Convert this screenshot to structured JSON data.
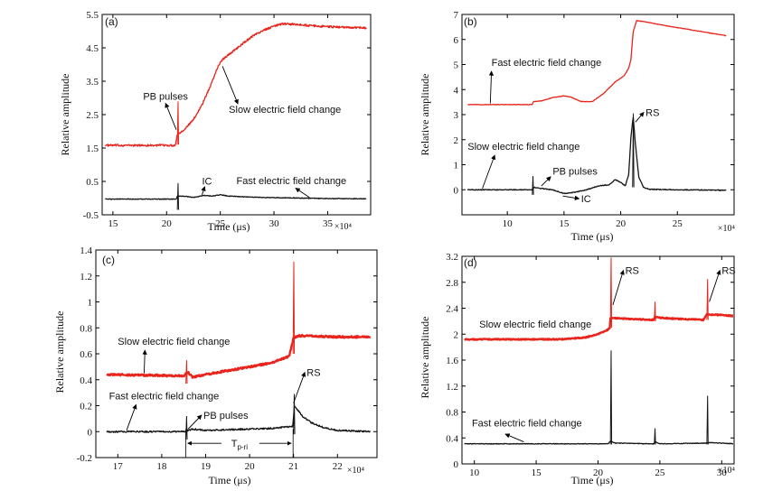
{
  "figure": {
    "colors": {
      "slow": "#e8241c",
      "fast": "#151515",
      "axis": "#000000"
    }
  },
  "chart_data": [
    {
      "id": "a",
      "panel_label": "(a)",
      "type": "line",
      "xlabel": "Time (μs)",
      "ylabel": "Relative amplitude",
      "x_multiplier": "×10⁴",
      "xlim": [
        14,
        39
      ],
      "ylim": [
        -0.5,
        5.5
      ],
      "xticks": [
        15,
        20,
        25,
        30,
        35
      ],
      "yticks": [
        -0.5,
        0.5,
        1.5,
        2.5,
        3.5,
        4.5,
        5.5
      ],
      "series": [
        {
          "name": "Slow electric field change",
          "color": "#e8241c",
          "noise": 0.03,
          "points": [
            [
              14.3,
              1.58
            ],
            [
              20.8,
              1.58
            ],
            [
              21.0,
              1.9
            ],
            [
              21.8,
              2.1
            ],
            [
              22.5,
              2.35
            ],
            [
              23.3,
              2.8
            ],
            [
              24.0,
              3.3
            ],
            [
              24.8,
              3.95
            ],
            [
              25.2,
              4.15
            ],
            [
              26.0,
              4.35
            ],
            [
              27.0,
              4.6
            ],
            [
              28.0,
              4.85
            ],
            [
              29.0,
              5.02
            ],
            [
              30.0,
              5.15
            ],
            [
              30.8,
              5.22
            ],
            [
              32.0,
              5.2
            ],
            [
              34.0,
              5.15
            ],
            [
              36.0,
              5.12
            ],
            [
              38.6,
              5.1
            ]
          ],
          "spikes": [
            [
              21.0,
              2.9,
              1.6
            ]
          ]
        },
        {
          "name": "Fast electric field change",
          "color": "#151515",
          "noise": 0.01,
          "points": [
            [
              14.3,
              -0.03
            ],
            [
              20.9,
              -0.03
            ],
            [
              21.0,
              0.06
            ],
            [
              21.8,
              0.05
            ],
            [
              22.5,
              0.02
            ],
            [
              23.5,
              0.08
            ],
            [
              24.2,
              0.06
            ],
            [
              25.0,
              0.1
            ],
            [
              25.8,
              0.06
            ],
            [
              27.0,
              0.04
            ],
            [
              29.0,
              0.02
            ],
            [
              31.0,
              0.01
            ],
            [
              34.0,
              -0.01
            ],
            [
              38.6,
              -0.02
            ]
          ],
          "spikes": [
            [
              21.0,
              0.45,
              -0.35
            ]
          ]
        }
      ],
      "annotations": [
        {
          "text": "PB pulses",
          "tx": 19.9,
          "ty": 2.95,
          "ax": 20.9,
          "ay": 2.05,
          "anchor": "middle"
        },
        {
          "text": "Slow electric field change",
          "tx": 25.8,
          "ty": 2.55,
          "ax": 25.2,
          "ay": 3.95,
          "anchor": "start"
        },
        {
          "text": "IC",
          "tx": 23.3,
          "ty": 0.4,
          "ax": 23.3,
          "ay": 0.1,
          "anchor": "start"
        },
        {
          "text": "Fast electric field change",
          "tx": 26.5,
          "ty": 0.42,
          "ax": 32.5,
          "ay": 0.0,
          "anchor": "start",
          "label_only": true
        }
      ],
      "callouts": [
        {
          "x1": 32.0,
          "y1": 0.3,
          "x2": 33.3,
          "y2": 0.02
        }
      ]
    },
    {
      "id": "b",
      "panel_label": "(b)",
      "type": "line",
      "xlabel": "Time (μs)",
      "ylabel": "Relative amplitude",
      "x_multiplier": "×10⁴",
      "xlim": [
        6,
        30
      ],
      "ylim": [
        -1,
        7
      ],
      "xticks": [
        10,
        15,
        20,
        25
      ],
      "yticks": [
        0,
        1,
        2,
        3,
        4,
        5,
        6,
        7
      ],
      "series": [
        {
          "name": "Fast electric field change",
          "color": "#e8241c",
          "noise": 0.01,
          "points": [
            [
              6.5,
              3.4
            ],
            [
              12.2,
              3.4
            ],
            [
              12.3,
              3.52
            ],
            [
              13.0,
              3.55
            ],
            [
              14.0,
              3.68
            ],
            [
              15.0,
              3.75
            ],
            [
              15.6,
              3.7
            ],
            [
              16.5,
              3.52
            ],
            [
              17.5,
              3.52
            ],
            [
              18.5,
              3.85
            ],
            [
              19.5,
              4.3
            ],
            [
              20.3,
              4.55
            ],
            [
              20.7,
              4.85
            ],
            [
              20.9,
              5.2
            ],
            [
              21.1,
              6.3
            ],
            [
              21.4,
              6.75
            ],
            [
              22.0,
              6.72
            ],
            [
              24.0,
              6.55
            ],
            [
              26.0,
              6.4
            ],
            [
              28.0,
              6.25
            ],
            [
              29.3,
              6.15
            ]
          ],
          "spikes": []
        },
        {
          "name": "Slow electric field change",
          "color": "#151515",
          "noise": 0.015,
          "points": [
            [
              6.5,
              0.0
            ],
            [
              12.2,
              0.0
            ],
            [
              12.3,
              0.1
            ],
            [
              13.0,
              0.05
            ],
            [
              14.0,
              0.0
            ],
            [
              15.0,
              -0.15
            ],
            [
              16.0,
              -0.1
            ],
            [
              17.0,
              0.0
            ],
            [
              18.0,
              0.15
            ],
            [
              19.0,
              0.2
            ],
            [
              19.5,
              0.4
            ],
            [
              20.0,
              0.3
            ],
            [
              20.4,
              0.15
            ],
            [
              20.7,
              0.6
            ],
            [
              20.9,
              2.1
            ],
            [
              21.1,
              2.9
            ],
            [
              21.3,
              1.8
            ],
            [
              21.6,
              0.5
            ],
            [
              22.0,
              0.1
            ],
            [
              22.5,
              0.02
            ],
            [
              25.0,
              0.0
            ],
            [
              29.3,
              -0.02
            ]
          ],
          "spikes": [
            [
              12.2,
              0.55,
              -0.2
            ],
            [
              21.05,
              3.05,
              0.1
            ]
          ]
        }
      ],
      "annotations": [
        {
          "text": "Fast electric field change",
          "tx": 8.6,
          "ty": 4.95,
          "ax": 8.5,
          "ay": 3.45,
          "anchor": "start"
        },
        {
          "text": "RS",
          "tx": 22.2,
          "ty": 2.95,
          "ax": 21.3,
          "ay": 2.7,
          "anchor": "start"
        },
        {
          "text": "Slow electric field change",
          "tx": 6.5,
          "ty": 1.6,
          "ax": 7.8,
          "ay": 0.05,
          "anchor": "start"
        },
        {
          "text": "PB pulses",
          "tx": 14.0,
          "ty": 0.6,
          "ax": 13.0,
          "ay": 0.15,
          "anchor": "start"
        },
        {
          "text": "IC",
          "tx": 16.5,
          "ty": -0.5,
          "ax": 14.9,
          "ay": -0.25,
          "anchor": "start"
        }
      ],
      "callouts": []
    },
    {
      "id": "c",
      "panel_label": "(c)",
      "type": "line",
      "xlabel": "Time (μs)",
      "ylabel": "Relative amplitude",
      "x_multiplier": "×10⁴",
      "xlim": [
        16.5,
        22.9
      ],
      "ylim": [
        -0.2,
        1.4
      ],
      "xticks": [
        17,
        18,
        19,
        20,
        21,
        22
      ],
      "yticks": [
        -0.2,
        0.0,
        0.2,
        0.4,
        0.6,
        0.8,
        1.0,
        1.2,
        1.4
      ],
      "series": [
        {
          "name": "Slow electric field change",
          "color": "#e8241c",
          "noise": 0.007,
          "width": 2.4,
          "points": [
            [
              16.75,
              0.44
            ],
            [
              18.5,
              0.43
            ],
            [
              18.6,
              0.46
            ],
            [
              18.7,
              0.42
            ],
            [
              19.0,
              0.44
            ],
            [
              19.5,
              0.47
            ],
            [
              20.0,
              0.5
            ],
            [
              20.5,
              0.53
            ],
            [
              20.9,
              0.58
            ],
            [
              21.0,
              0.72
            ],
            [
              21.1,
              0.74
            ],
            [
              22.0,
              0.73
            ],
            [
              22.75,
              0.73
            ]
          ],
          "spikes": [
            [
              18.55,
              0.55,
              0.37
            ],
            [
              20.99,
              1.31,
              0.6
            ]
          ]
        },
        {
          "name": "Fast electric field change",
          "color": "#151515",
          "noise": 0.006,
          "points": [
            [
              16.75,
              0.0
            ],
            [
              18.5,
              0.0
            ],
            [
              18.7,
              0.02
            ],
            [
              19.0,
              0.01
            ],
            [
              19.5,
              0.015
            ],
            [
              20.0,
              0.02
            ],
            [
              20.5,
              0.025
            ],
            [
              20.98,
              0.04
            ],
            [
              21.02,
              0.2
            ],
            [
              21.2,
              0.12
            ],
            [
              21.4,
              0.07
            ],
            [
              21.7,
              0.03
            ],
            [
              22.0,
              0.01
            ],
            [
              22.75,
              0.0
            ]
          ],
          "spikes": [
            [
              18.55,
              0.12,
              -0.06
            ],
            [
              21.0,
              0.29,
              -0.02
            ]
          ]
        }
      ],
      "annotations": [
        {
          "text": "Slow electric field change",
          "tx": 17.0,
          "ty": 0.67,
          "ax": 17.6,
          "ay": 0.45,
          "anchor": "start"
        },
        {
          "text": "Fast electric field change",
          "tx": 16.8,
          "ty": 0.25,
          "ax": 17.2,
          "ay": 0.01,
          "anchor": "start"
        },
        {
          "text": "PB pulses",
          "tx": 18.95,
          "ty": 0.1,
          "ax": 18.6,
          "ay": 0.02,
          "anchor": "start"
        },
        {
          "text": "RS",
          "tx": 21.3,
          "ty": 0.43,
          "ax": 21.0,
          "ay": 0.22,
          "anchor": "start"
        }
      ],
      "callouts": [],
      "interval": {
        "x1": 18.55,
        "x2": 20.99,
        "y": -0.09,
        "label_main": "T",
        "label_sub": "p-ri"
      }
    },
    {
      "id": "d",
      "panel_label": "(d)",
      "type": "line",
      "xlabel": "Time (μs)",
      "ylabel": "Relative amplitude",
      "x_multiplier": "×10⁴",
      "xlim": [
        9,
        31
      ],
      "ylim": [
        0.0,
        3.2
      ],
      "xticks": [
        10,
        15,
        20,
        25,
        30
      ],
      "yticks": [
        0.0,
        0.4,
        0.8,
        1.2,
        1.6,
        2.0,
        2.4,
        2.8,
        3.2
      ],
      "series": [
        {
          "name": "Slow electric field change",
          "color": "#e8241c",
          "noise": 0.008,
          "width": 2.4,
          "points": [
            [
              9.2,
              1.92
            ],
            [
              17.0,
              1.92
            ],
            [
              19.0,
              1.95
            ],
            [
              20.0,
              2.0
            ],
            [
              20.8,
              2.07
            ],
            [
              20.95,
              2.1
            ],
            [
              21.0,
              2.25
            ],
            [
              22.0,
              2.24
            ],
            [
              24.5,
              2.22
            ],
            [
              24.6,
              2.26
            ],
            [
              26.0,
              2.24
            ],
            [
              28.5,
              2.22
            ],
            [
              28.8,
              2.3
            ],
            [
              29.5,
              2.3
            ],
            [
              31.0,
              2.28
            ]
          ],
          "spikes": [
            [
              21.0,
              3.18,
              2.1
            ],
            [
              24.55,
              2.5,
              2.2
            ],
            [
              28.8,
              2.85,
              2.22
            ]
          ]
        },
        {
          "name": "Fast electric field change",
          "color": "#151515",
          "noise": 0.005,
          "points": [
            [
              9.2,
              0.31
            ],
            [
              20.8,
              0.31
            ],
            [
              21.0,
              0.35
            ],
            [
              21.4,
              0.32
            ],
            [
              24.5,
              0.31
            ],
            [
              24.6,
              0.34
            ],
            [
              25.0,
              0.31
            ],
            [
              28.8,
              0.32
            ],
            [
              29.0,
              0.33
            ],
            [
              31.0,
              0.31
            ]
          ],
          "spikes": [
            [
              21.0,
              1.75,
              0.3
            ],
            [
              24.55,
              0.55,
              0.3
            ],
            [
              28.8,
              1.05,
              0.3
            ]
          ]
        }
      ],
      "annotations": [
        {
          "text": "RS",
          "tx": 22.2,
          "ty": 2.93,
          "ax": 21.2,
          "ay": 2.45,
          "anchor": "start"
        },
        {
          "text": "RS",
          "tx": 30.0,
          "ty": 2.93,
          "ax": 29.0,
          "ay": 2.5,
          "anchor": "start"
        },
        {
          "text": "Slow electric field change",
          "tx": 10.4,
          "ty": 2.1,
          "ax": 20.5,
          "ay": 2.1,
          "anchor": "start",
          "label_only": true
        },
        {
          "text": "Fast electric field change",
          "tx": 9.8,
          "ty": 0.58,
          "ax": 14.0,
          "ay": 0.34,
          "anchor": "start",
          "label_only": true
        }
      ],
      "callouts": [
        {
          "x1": 12.5,
          "y1": 0.46,
          "x2": 14.0,
          "y2": 0.34
        }
      ]
    }
  ]
}
